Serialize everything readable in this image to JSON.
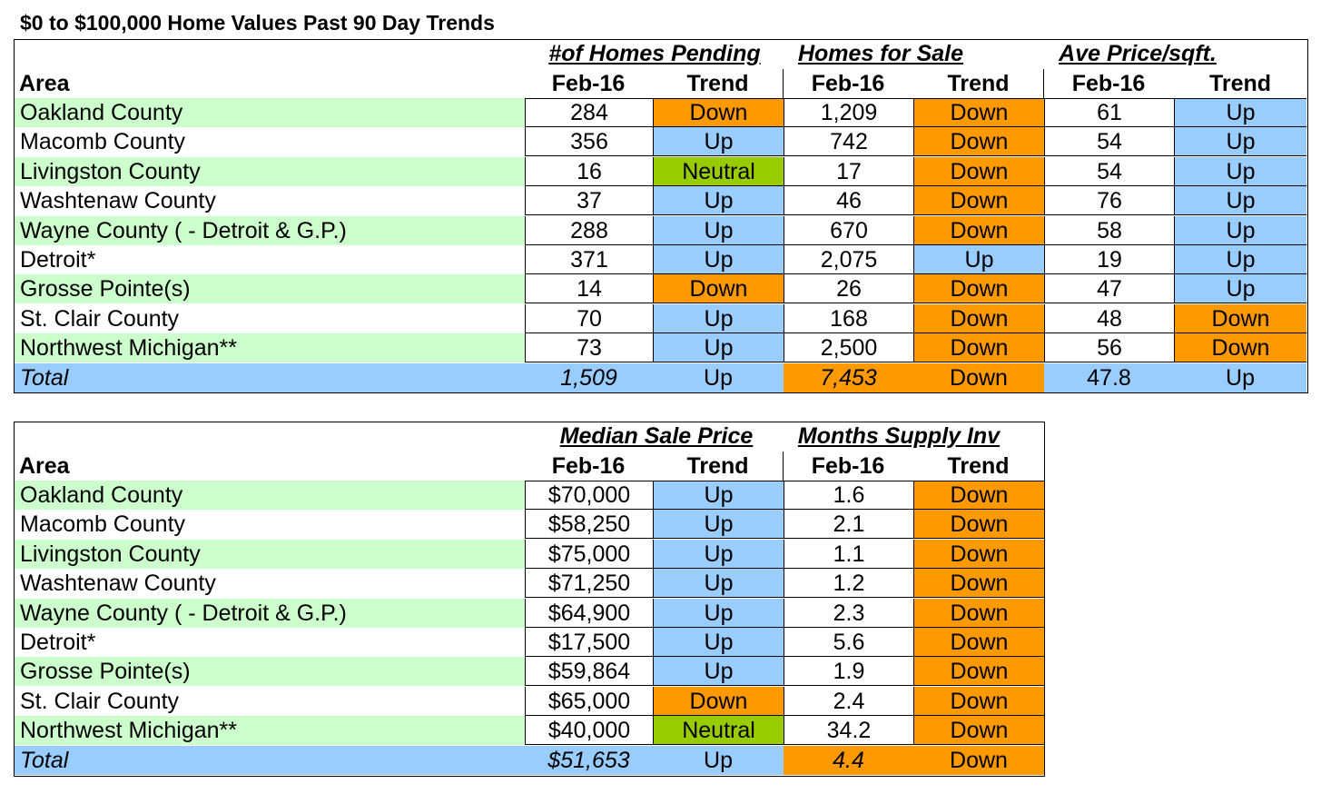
{
  "title": "$0 to $100,000 Home Values Past 90 Day Trends",
  "table1": {
    "area_header": "Area",
    "groups": [
      "#of Homes Pending",
      "Homes for Sale",
      "Ave Price/sqft."
    ],
    "sub_month": "Feb-16",
    "sub_trend": "Trend",
    "rows": [
      {
        "area": "Oakland County",
        "v1": "284",
        "t1": "Down",
        "v2": "1,209",
        "t2": "Down",
        "v3": "61",
        "t3": "Up"
      },
      {
        "area": "Macomb County",
        "v1": "356",
        "t1": "Up",
        "v2": "742",
        "t2": "Down",
        "v3": "54",
        "t3": "Up"
      },
      {
        "area": "Livingston County",
        "v1": "16",
        "t1": "Neutral",
        "v2": "17",
        "t2": "Down",
        "v3": "54",
        "t3": "Up"
      },
      {
        "area": "Washtenaw County",
        "v1": "37",
        "t1": "Up",
        "v2": "46",
        "t2": "Down",
        "v3": "76",
        "t3": "Up"
      },
      {
        "area": "Wayne County ( - Detroit & G.P.)",
        "v1": "288",
        "t1": "Up",
        "v2": "670",
        "t2": "Down",
        "v3": "58",
        "t3": "Up"
      },
      {
        "area": "Detroit*",
        "v1": "371",
        "t1": "Up",
        "v2": "2,075",
        "t2": "Up",
        "v3": "19",
        "t3": "Up"
      },
      {
        "area": "Grosse Pointe(s)",
        "v1": "14",
        "t1": "Down",
        "v2": "26",
        "t2": "Down",
        "v3": "47",
        "t3": "Up"
      },
      {
        "area": "St. Clair County",
        "v1": "70",
        "t1": "Up",
        "v2": "168",
        "t2": "Down",
        "v3": "48",
        "t3": "Down"
      },
      {
        "area": "Northwest Michigan**",
        "v1": "73",
        "t1": "Up",
        "v2": "2,500",
        "t2": "Down",
        "v3": "56",
        "t3": "Down"
      }
    ],
    "total": {
      "area": "Total",
      "v1": "1,509",
      "t1": "Up",
      "v2": "7,453",
      "t2": "Down",
      "v3": "47.8",
      "t3": "Up"
    }
  },
  "table2": {
    "area_header": "Area",
    "groups": [
      "Median Sale Price",
      "Months Supply Inv"
    ],
    "sub_month": "Feb-16",
    "sub_trend": "Trend",
    "rows": [
      {
        "area": "Oakland County",
        "v1": "$70,000",
        "t1": "Up",
        "v2": "1.6",
        "t2": "Down"
      },
      {
        "area": "Macomb County",
        "v1": "$58,250",
        "t1": "Up",
        "v2": "2.1",
        "t2": "Down"
      },
      {
        "area": "Livingston County",
        "v1": "$75,000",
        "t1": "Up",
        "v2": "1.1",
        "t2": "Down"
      },
      {
        "area": "Washtenaw County",
        "v1": "$71,250",
        "t1": "Up",
        "v2": "1.2",
        "t2": "Down"
      },
      {
        "area": "Wayne County ( - Detroit & G.P.)",
        "v1": "$64,900",
        "t1": "Up",
        "v2": "2.3",
        "t2": "Down"
      },
      {
        "area": "Detroit*",
        "v1": "$17,500",
        "t1": "Up",
        "v2": "5.6",
        "t2": "Down"
      },
      {
        "area": "Grosse Pointe(s)",
        "v1": "$59,864",
        "t1": "Up",
        "v2": "1.9",
        "t2": "Down"
      },
      {
        "area": "St. Clair County",
        "v1": "$65,000",
        "t1": "Down",
        "v2": "2.4",
        "t2": "Down"
      },
      {
        "area": "Northwest Michigan**",
        "v1": "$40,000",
        "t1": "Neutral",
        "v2": "34.2",
        "t2": "Down"
      }
    ],
    "total": {
      "area": "Total",
      "v1": "$51,653",
      "t1": "Up",
      "v2": "4.4",
      "t2": "Down"
    }
  },
  "colors": {
    "area_green": "#ccffcc",
    "up_blue": "#99ccff",
    "down_orange": "#ff9900",
    "neutral_green": "#99cc00"
  }
}
